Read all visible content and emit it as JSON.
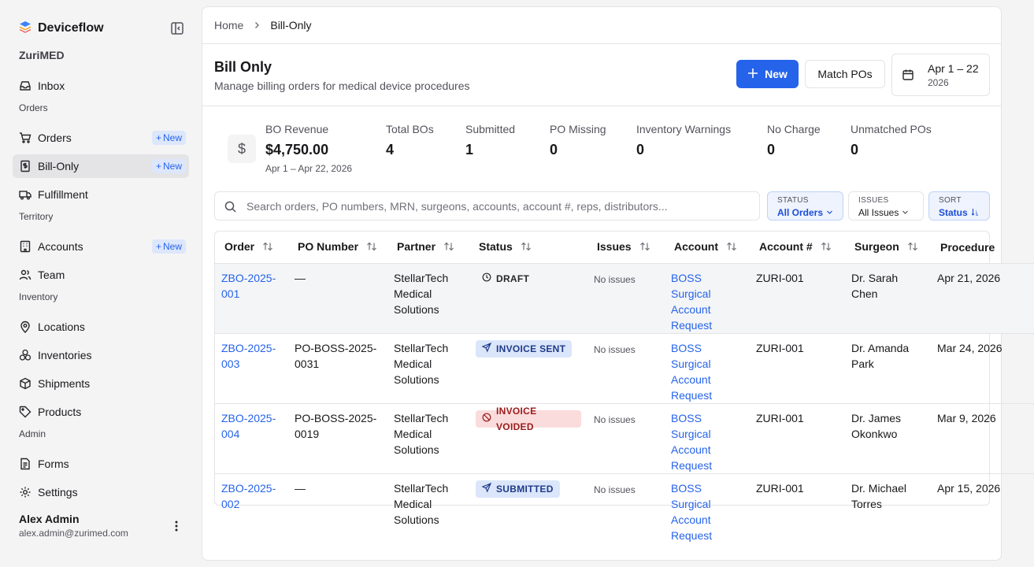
{
  "app": {
    "name": "Deviceflow",
    "org": "ZuriMED"
  },
  "sidebar": {
    "top_items": [
      {
        "label": "Inbox",
        "icon": "inbox-icon"
      }
    ],
    "sections": [
      {
        "title": "Orders",
        "items": [
          {
            "label": "Orders",
            "icon": "cart-icon",
            "badge": "New"
          },
          {
            "label": "Bill-Only",
            "icon": "receipt-icon",
            "badge": "New",
            "active": true
          },
          {
            "label": "Fulfillment",
            "icon": "truck-icon"
          }
        ]
      },
      {
        "title": "Territory",
        "items": [
          {
            "label": "Accounts",
            "icon": "building-icon",
            "badge": "New"
          },
          {
            "label": "Team",
            "icon": "users-icon"
          }
        ]
      },
      {
        "title": "Inventory",
        "items": [
          {
            "label": "Locations",
            "icon": "map-pin-icon"
          },
          {
            "label": "Inventories",
            "icon": "boxes-icon"
          },
          {
            "label": "Shipments",
            "icon": "package-icon"
          },
          {
            "label": "Products",
            "icon": "tag-icon"
          }
        ]
      },
      {
        "title": "Admin",
        "items": [
          {
            "label": "Forms",
            "icon": "file-icon"
          },
          {
            "label": "Settings",
            "icon": "gear-icon"
          }
        ]
      }
    ],
    "user": {
      "name": "Alex Admin",
      "email": "alex.admin@zurimed.com"
    }
  },
  "breadcrumb": {
    "home": "Home",
    "current": "Bill-Only"
  },
  "header": {
    "title": "Bill Only",
    "subtitle": "Manage billing orders for medical device procedures",
    "new_label": "New",
    "match_label": "Match POs",
    "date_range": "Apr 1 – 22",
    "date_year": "2026"
  },
  "stats": {
    "revenue": {
      "label": "BO Revenue",
      "value": "$4,750.00",
      "sub": "Apr 1 – Apr 22, 2026"
    },
    "total": {
      "label": "Total BOs",
      "value": "4"
    },
    "submitted": {
      "label": "Submitted",
      "value": "1"
    },
    "po_missing": {
      "label": "PO Missing",
      "value": "0"
    },
    "inventory_warnings": {
      "label": "Inventory Warnings",
      "value": "0"
    },
    "no_charge": {
      "label": "No Charge",
      "value": "0"
    },
    "unmatched": {
      "label": "Unmatched POs",
      "value": "0"
    }
  },
  "filters": {
    "search_placeholder": "Search orders, PO numbers, MRN, surgeons, accounts, account #, reps, distributors...",
    "status": {
      "label": "STATUS",
      "value": "All Orders"
    },
    "issues": {
      "label": "ISSUES",
      "value": "All Issues"
    },
    "sort": {
      "label": "SORT",
      "value": "Status"
    }
  },
  "table": {
    "columns": [
      "Order",
      "PO Number",
      "Partner",
      "Status",
      "Issues",
      "Account",
      "Account #",
      "Surgeon",
      "Procedure"
    ],
    "rows": [
      {
        "order": "ZBO-2025-001",
        "po": "—",
        "partner": "StellarTech Medical Solutions",
        "status": "DRAFT",
        "issues": "No issues",
        "account": "BOSS Surgical Account Request",
        "account_no": "ZURI-001",
        "surgeon": "Dr. Sarah Chen",
        "procedure": "Apr 21, 2026"
      },
      {
        "order": "ZBO-2025-003",
        "po": "PO-BOSS-2025-0031",
        "partner": "StellarTech Medical Solutions",
        "status": "INVOICE SENT",
        "issues": "No issues",
        "account": "BOSS Surgical Account Request",
        "account_no": "ZURI-001",
        "surgeon": "Dr. Amanda Park",
        "procedure": "Mar 24, 2026"
      },
      {
        "order": "ZBO-2025-004",
        "po": "PO-BOSS-2025-0019",
        "partner": "StellarTech Medical Solutions",
        "status": "INVOICE VOIDED",
        "issues": "No issues",
        "account": "BOSS Surgical Account Request",
        "account_no": "ZURI-001",
        "surgeon": "Dr. James Okonkwo",
        "procedure": "Mar 9, 2026"
      },
      {
        "order": "ZBO-2025-002",
        "po": "—",
        "partner": "StellarTech Medical Solutions",
        "status": "SUBMITTED",
        "issues": "No issues",
        "account": "BOSS Surgical Account Request",
        "account_no": "ZURI-001",
        "surgeon": "Dr. Michael Torres",
        "procedure": "Apr 15, 2026"
      }
    ]
  },
  "colors": {
    "accent": "#2563eb",
    "sidebar_bg": "#f4f4f5",
    "voided_bg": "#fbdcdc",
    "sent_bg": "#dbe6fb"
  }
}
